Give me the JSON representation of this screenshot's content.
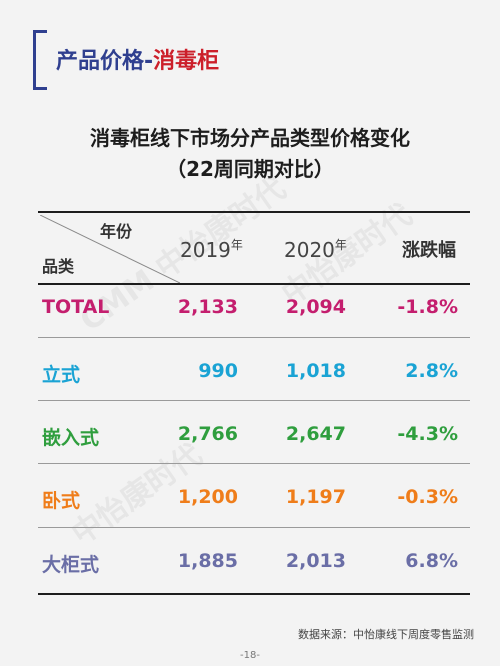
{
  "header": {
    "title_part1": "产品价格-",
    "title_part2": "消毒柜"
  },
  "table_title": {
    "line1": "消毒柜线下市场分产品类型价格变化",
    "line2": "（22周同期对比）"
  },
  "table": {
    "corner_top": "年份",
    "corner_bottom": "品类",
    "col_2019": "2019",
    "col_2020": "2020",
    "year_suffix": "年",
    "col_change": "涨跌幅",
    "rows": [
      {
        "label": "TOTAL",
        "v2019": "2,133",
        "v2020": "2,094",
        "change": "-1.8%",
        "color": "#c41e6e"
      },
      {
        "label": "立式",
        "v2019": "990",
        "v2020": "1,018",
        "change": "2.8%",
        "color": "#1aa3d4"
      },
      {
        "label": "嵌入式",
        "v2019": "2,766",
        "v2020": "2,647",
        "change": "-4.3%",
        "color": "#2f9e3e"
      },
      {
        "label": "卧式",
        "v2019": "1,200",
        "v2020": "1,197",
        "change": "-0.3%",
        "color": "#ef7d1a"
      },
      {
        "label": "大柜式",
        "v2019": "1,885",
        "v2020": "2,013",
        "change": "6.8%",
        "color": "#6a6ea6"
      }
    ]
  },
  "source": "数据来源：中怡康线下周度零售监测",
  "page_number": "-18-"
}
